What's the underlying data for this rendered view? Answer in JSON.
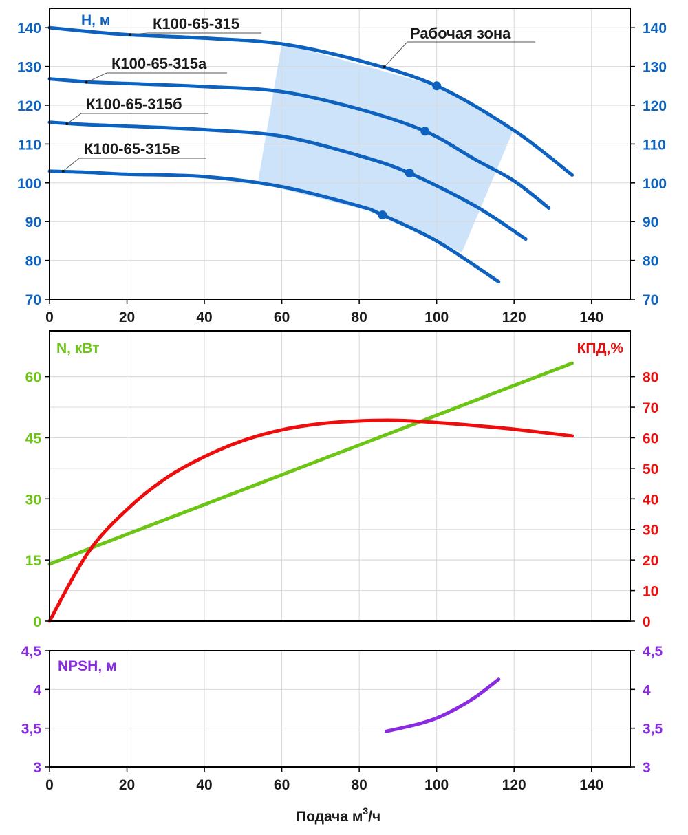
{
  "colors": {
    "head": "#0d62c0",
    "power": "#6cc514",
    "efficiency": "#ee0d0d",
    "npsh": "#8a2be2",
    "work_zone": "#cce3fa",
    "grid": "#d9d9d9",
    "text": "#1a1a1a"
  },
  "x_axis": {
    "ticks": [
      "0",
      "20",
      "40",
      "60",
      "80",
      "100",
      "120",
      "140"
    ],
    "label_main": "Подача м",
    "label_sup": "3",
    "label_tail": "/ч"
  },
  "chart_data": [
    {
      "type": "line",
      "title": "H, м",
      "x_range": [
        0,
        150
      ],
      "y_range": [
        70,
        145
      ],
      "y_ticks_left": [
        "70",
        "80",
        "90",
        "100",
        "110",
        "120",
        "130",
        "140"
      ],
      "y_ticks_right": [
        "70",
        "80",
        "90",
        "100",
        "110",
        "120",
        "130",
        "140"
      ],
      "grid": true,
      "area_label": "Рабочая зона",
      "work_zone": [
        [
          60,
          136
        ],
        [
          100,
          125
        ],
        [
          120,
          114
        ],
        [
          106.5,
          82
        ],
        [
          85.6,
          92
        ],
        [
          53.8,
          100
        ]
      ],
      "series": [
        {
          "name": "К100-65-315",
          "points": [
            [
              0,
              140
            ],
            [
              10,
              139
            ],
            [
              20,
              138.2
            ],
            [
              40,
              137.3
            ],
            [
              60,
              135.8
            ],
            [
              80,
              131.5
            ],
            [
              100,
              125
            ],
            [
              120,
              113.5
            ],
            [
              135,
              102
            ]
          ],
          "marker": [
            100,
            125
          ]
        },
        {
          "name": "К100-65-315а",
          "points": [
            [
              0,
              126.8
            ],
            [
              10,
              126
            ],
            [
              20,
              125.6
            ],
            [
              40,
              124.8
            ],
            [
              60,
              123.5
            ],
            [
              80,
              119
            ],
            [
              97,
              113.3
            ],
            [
              110,
              106
            ],
            [
              120,
              100.5
            ],
            [
              129,
              93.5
            ]
          ],
          "marker": [
            97,
            113.3
          ]
        },
        {
          "name": "К100-65-315б",
          "points": [
            [
              0,
              115.6
            ],
            [
              10,
              115
            ],
            [
              20,
              114.6
            ],
            [
              40,
              113.7
            ],
            [
              60,
              112
            ],
            [
              80,
              107
            ],
            [
              93,
              102.5
            ],
            [
              110,
              94
            ],
            [
              123,
              85.5
            ]
          ],
          "marker": [
            93,
            102.5
          ]
        },
        {
          "name": "К100-65-315в",
          "points": [
            [
              0,
              103
            ],
            [
              10,
              102.7
            ],
            [
              20,
              102.2
            ],
            [
              40,
              101.6
            ],
            [
              60,
              99
            ],
            [
              80,
              94
            ],
            [
              86,
              91.7
            ],
            [
              100,
              85
            ],
            [
              116,
              74.5
            ]
          ],
          "marker": [
            86,
            91.7
          ]
        }
      ]
    },
    {
      "type": "line",
      "x_range": [
        0,
        150
      ],
      "y_left": {
        "title": "N, кВт",
        "range": [
          0,
          71.25
        ],
        "ticks": [
          "0",
          "15",
          "30",
          "45",
          "60"
        ]
      },
      "y_right": {
        "title": "КПД,%",
        "range": [
          0,
          95
        ],
        "ticks": [
          "0",
          "10",
          "20",
          "30",
          "40",
          "50",
          "60",
          "70",
          "80"
        ]
      },
      "grid": true,
      "series": [
        {
          "axis": "left",
          "points": [
            [
              0,
              14
            ],
            [
              135,
              63.3
            ]
          ]
        },
        {
          "axis": "right",
          "points": [
            [
              0,
              0
            ],
            [
              10,
              22.5
            ],
            [
              20,
              36.5
            ],
            [
              30,
              46.7
            ],
            [
              40,
              53.8
            ],
            [
              50,
              59.1
            ],
            [
              60,
              62.6
            ],
            [
              70,
              64.6
            ],
            [
              80,
              65.5
            ],
            [
              90,
              65.7
            ],
            [
              100,
              65
            ],
            [
              110,
              64
            ],
            [
              120,
              62.8
            ],
            [
              135,
              60.6
            ]
          ]
        }
      ]
    },
    {
      "type": "line",
      "title": "NPSH, м",
      "x_range": [
        0,
        150
      ],
      "y_range": [
        3,
        4.5
      ],
      "y_ticks_left": [
        "3",
        "3,5",
        "4",
        "4,5"
      ],
      "y_ticks_right": [
        "3",
        "3,5",
        "4",
        "4,5"
      ],
      "grid": true,
      "series": [
        {
          "points": [
            [
              87,
              3.46
            ],
            [
              95,
              3.55
            ],
            [
              100,
              3.63
            ],
            [
              105,
              3.75
            ],
            [
              110,
              3.9
            ],
            [
              116,
              4.13
            ]
          ]
        }
      ]
    }
  ]
}
